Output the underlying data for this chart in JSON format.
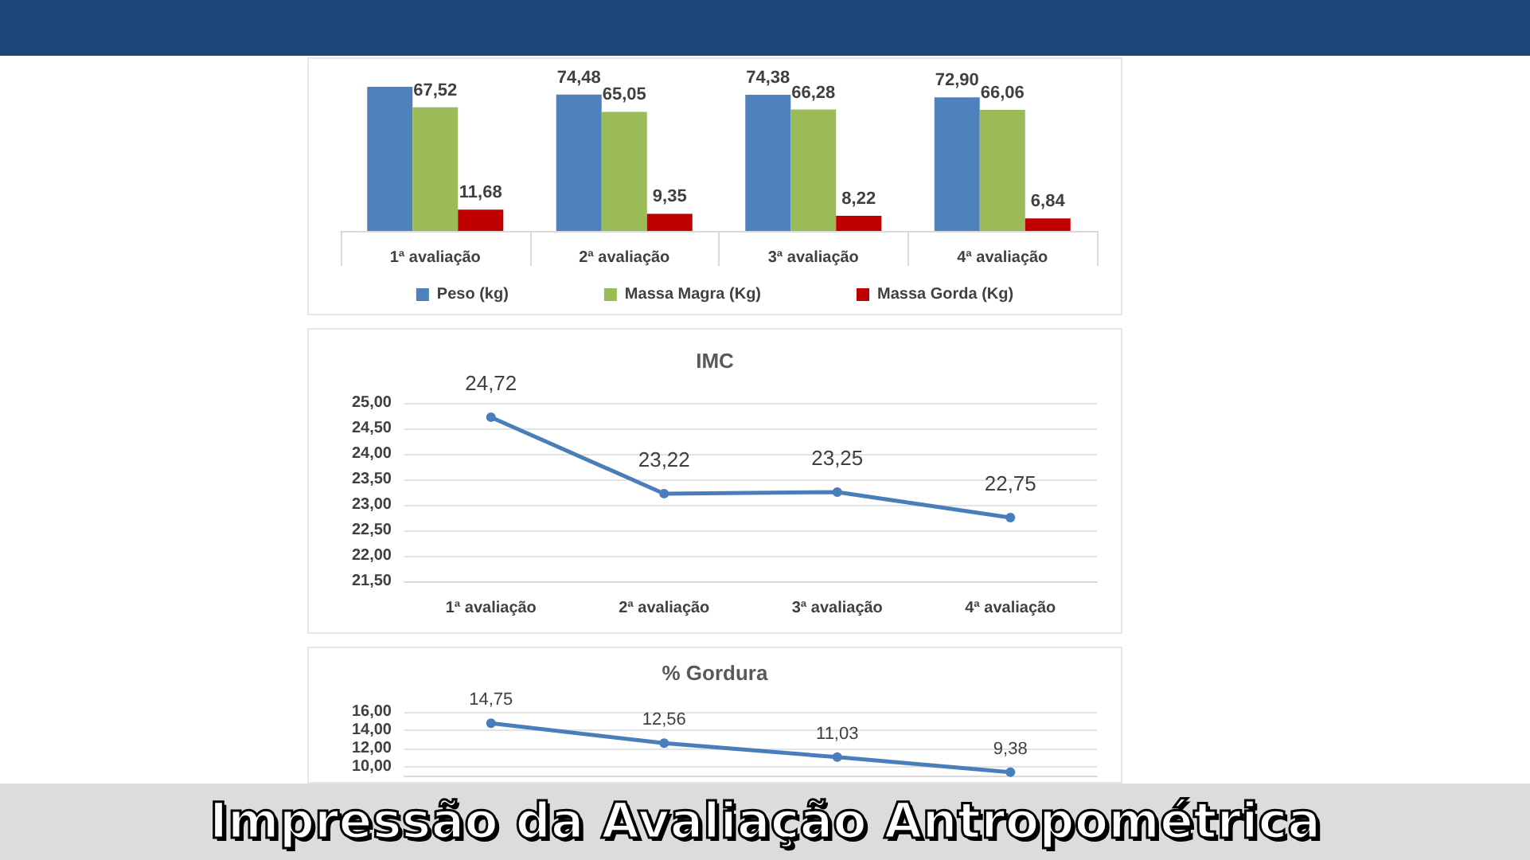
{
  "chart_data": [
    {
      "type": "bar",
      "categories": [
        "1ª avaliação",
        "2ª avaliação",
        "3ª avaliação",
        "4ª avaliação"
      ],
      "legend": "bottom",
      "series": [
        {
          "name": "Peso (kg)",
          "color": "#4f81bd",
          "values": [
            78.7,
            74.48,
            74.38,
            72.9
          ],
          "value_labels": [
            null,
            "74,48",
            "74,38",
            "72,90"
          ]
        },
        {
          "name": "Massa Magra (Kg)",
          "color": "#9bbb59",
          "values": [
            67.52,
            65.05,
            66.28,
            66.06
          ],
          "value_labels": [
            "67,52",
            "65,05",
            "66,28",
            "66,06"
          ]
        },
        {
          "name": "Massa Gorda (Kg)",
          "color": "#c00000",
          "values": [
            11.68,
            9.35,
            8.22,
            6.84
          ],
          "value_labels": [
            "11,68",
            "9,35",
            "8,22",
            "6,84"
          ]
        }
      ]
    },
    {
      "type": "line",
      "title": "IMC",
      "categories": [
        "1ª avaliação",
        "2ª avaliação",
        "3ª avaliação",
        "4ª avaliação"
      ],
      "color": "#4a7ebb",
      "marker": "circle",
      "grid": "y",
      "values": [
        24.72,
        23.22,
        23.25,
        22.75
      ],
      "value_labels": [
        "24,72",
        "23,22",
        "23,25",
        "22,75"
      ],
      "ylim": [
        21.5,
        25
      ],
      "yticks": [
        {
          "value": 21.5,
          "label": "21,50"
        },
        {
          "value": 22,
          "label": "22,00"
        },
        {
          "value": 22.5,
          "label": "22,50"
        },
        {
          "value": 23,
          "label": "23,00"
        },
        {
          "value": 23.5,
          "label": "23,50"
        },
        {
          "value": 24,
          "label": "24,00"
        },
        {
          "value": 24.5,
          "label": "24,50"
        },
        {
          "value": 25,
          "label": "25,00"
        }
      ]
    },
    {
      "type": "line",
      "title": "% Gordura",
      "categories": [
        null,
        null,
        null,
        null
      ],
      "color": "#4a7ebb",
      "marker": "circle",
      "grid": "y",
      "tick_labels": "y",
      "values": [
        14.75,
        12.56,
        11.03,
        9.38
      ],
      "value_labels": [
        "14,75",
        "12,56",
        "11,03",
        "9,38"
      ],
      "ylim": [
        9,
        16
      ],
      "yticks": [
        {
          "value": 10,
          "label": "10,00"
        },
        {
          "value": 12,
          "label": "12,00"
        },
        {
          "value": 14,
          "label": "14,00"
        },
        {
          "value": 16,
          "label": "16,00"
        }
      ],
      "annotations": [
        "Impressão da Avaliação Antropométrica"
      ]
    }
  ]
}
